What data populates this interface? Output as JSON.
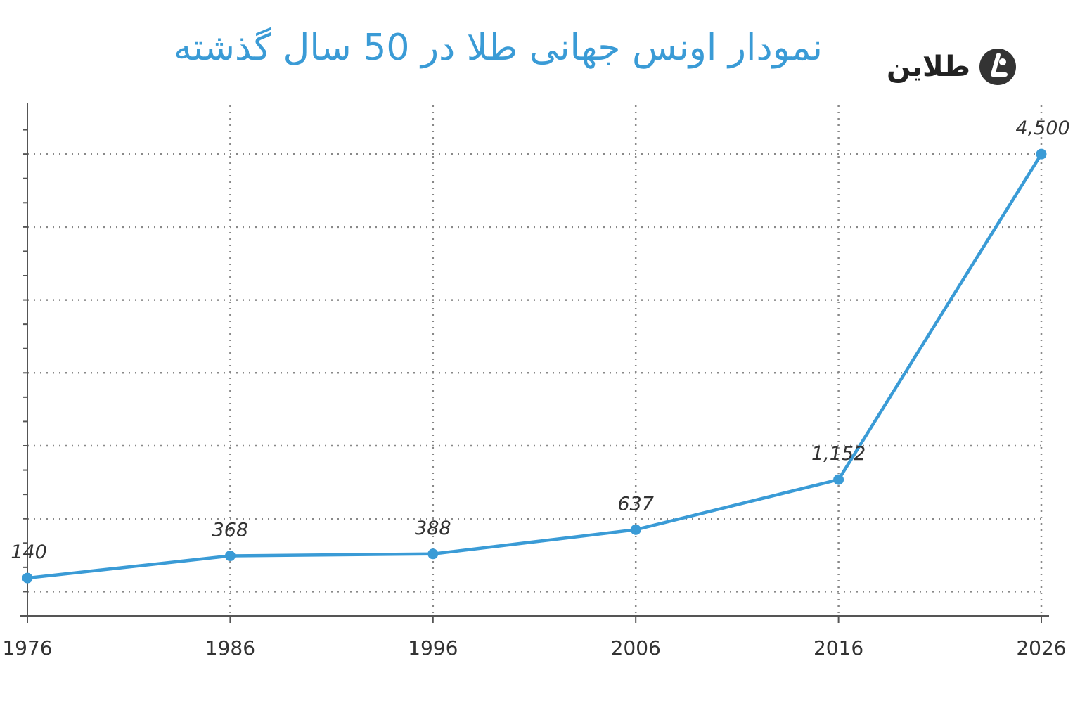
{
  "brand": {
    "name": "طلاین",
    "logo_icon": "talain-logo-icon"
  },
  "chart_data": {
    "type": "line",
    "title": "نمودار اونس جهانی طلا در 50 سال گذشته",
    "x": [
      1976,
      1986,
      1996,
      2006,
      2016,
      2026
    ],
    "x_tick_labels": [
      "1976",
      "1986",
      "1996",
      "2006",
      "2016",
      "2026"
    ],
    "series": [
      {
        "values": [
          140,
          368,
          388,
          637,
          1152,
          4500
        ],
        "data_labels": [
          "140",
          "368",
          "388",
          "637",
          "1,152",
          "4,500"
        ],
        "color": "#3a9bd6"
      }
    ],
    "xlim": [
      1976,
      2026
    ],
    "ylim": [
      -250,
      5000
    ],
    "grid": "dotted",
    "line_color": "#3a9bd6",
    "axis_color": "#555555"
  }
}
